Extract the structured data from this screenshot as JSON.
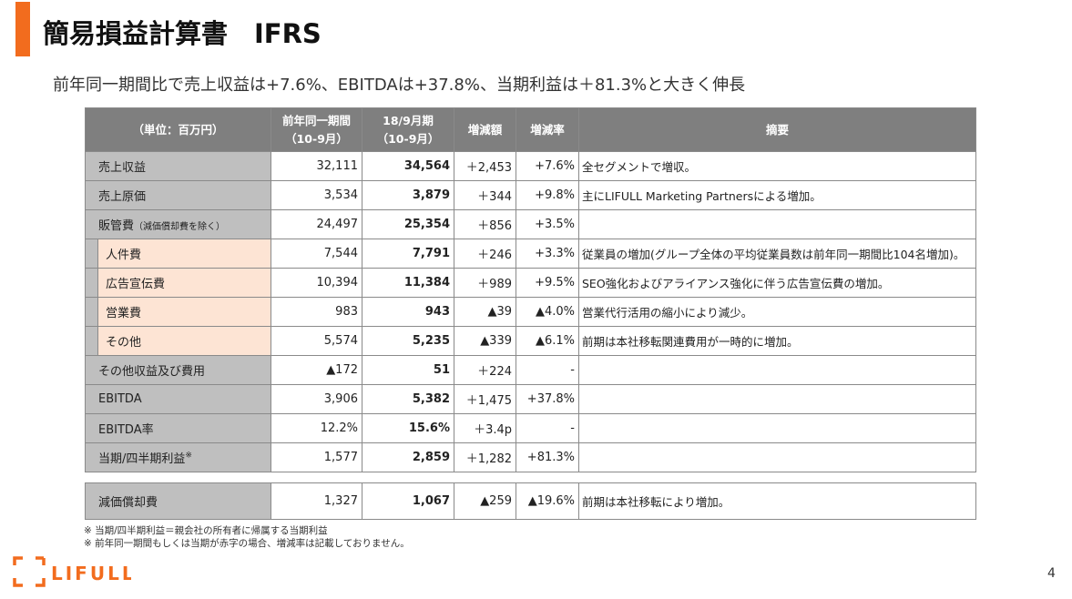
{
  "title": "簡易損益計算書　IFRS",
  "subtitle": "前年同一期間比で売上収益は+7.6%、EBITDAは+37.8%、当期利益は＋81.3%と大きく伸長",
  "table": {
    "headers": {
      "unit": "（単位：百万円）",
      "prev_l1": "前年同一期間",
      "prev_l2": "（10-9月）",
      "cur_l1": "18/9月期",
      "cur_l2": "（10-9月）",
      "diff": "増減額",
      "rate": "増減率",
      "note": "摘要"
    },
    "rows": [
      {
        "label": "売上収益",
        "prev": "32,111",
        "cur": "34,564",
        "diff": "＋2,453",
        "rate": "+7.6%",
        "note": "全セグメントで増収。"
      },
      {
        "label": "売上原価",
        "prev": "3,534",
        "cur": "3,879",
        "diff": "＋344",
        "rate": "+9.8%",
        "note": "主にLIFULL Marketing Partnersによる増加。"
      },
      {
        "label": "販管費",
        "label_small": "（減価償却費を除く）",
        "prev": "24,497",
        "cur": "25,354",
        "diff": "＋856",
        "rate": "+3.5%",
        "note": ""
      },
      {
        "label": "人件費",
        "sub": true,
        "prev": "7,544",
        "cur": "7,791",
        "diff": "＋246",
        "rate": "+3.3%",
        "note": "従業員の増加(グループ全体の平均従業員数は前年同一期間比104名増加)。"
      },
      {
        "label": "広告宣伝費",
        "sub": true,
        "prev": "10,394",
        "cur": "11,384",
        "diff": "＋989",
        "rate": "+9.5%",
        "note": "SEO強化およびアライアンス強化に伴う広告宣伝費の増加。"
      },
      {
        "label": "営業費",
        "sub": true,
        "prev": "983",
        "cur": "943",
        "diff": "▲39",
        "rate": "▲4.0%",
        "note": "営業代行活用の縮小により減少。"
      },
      {
        "label": "その他",
        "sub": true,
        "prev": "5,574",
        "cur": "5,235",
        "diff": "▲339",
        "rate": "▲6.1%",
        "note": "前期は本社移転関連費用が一時的に増加。"
      },
      {
        "label": "その他収益及び費用",
        "prev": "▲172",
        "cur": "51",
        "diff": "＋224",
        "rate": "-",
        "note": ""
      },
      {
        "label": "EBITDA",
        "prev": "3,906",
        "cur": "5,382",
        "diff": "＋1,475",
        "rate": "+37.8%",
        "note": ""
      },
      {
        "label": "EBITDA率",
        "prev": "12.2%",
        "cur": "15.6%",
        "diff": "＋3.4p",
        "rate": "-",
        "note": ""
      },
      {
        "label": "当期/四半期利益",
        "label_sup": "※",
        "prev": "1,577",
        "cur": "2,859",
        "diff": "＋1,282",
        "rate": "+81.3%",
        "note": ""
      }
    ],
    "depreciation": {
      "label": "減価償却費",
      "prev": "1,327",
      "cur": "1,067",
      "diff": "▲259",
      "rate": "▲19.6%",
      "note": "前期は本社移転により増加。"
    }
  },
  "footnotes": [
    "※ 当期/四半期利益＝親会社の所有者に帰属する当期利益",
    "※ 前年同一期間もしくは当期が赤字の場合、増減率は記載しておりません。"
  ],
  "logo_text": "LIFULL",
  "page_number": "4",
  "colors": {
    "accent": "#f26c1e",
    "header_bg": "#7f7f7f",
    "label_bg": "#bfbfbf",
    "sub_bg": "#fde4d4"
  }
}
